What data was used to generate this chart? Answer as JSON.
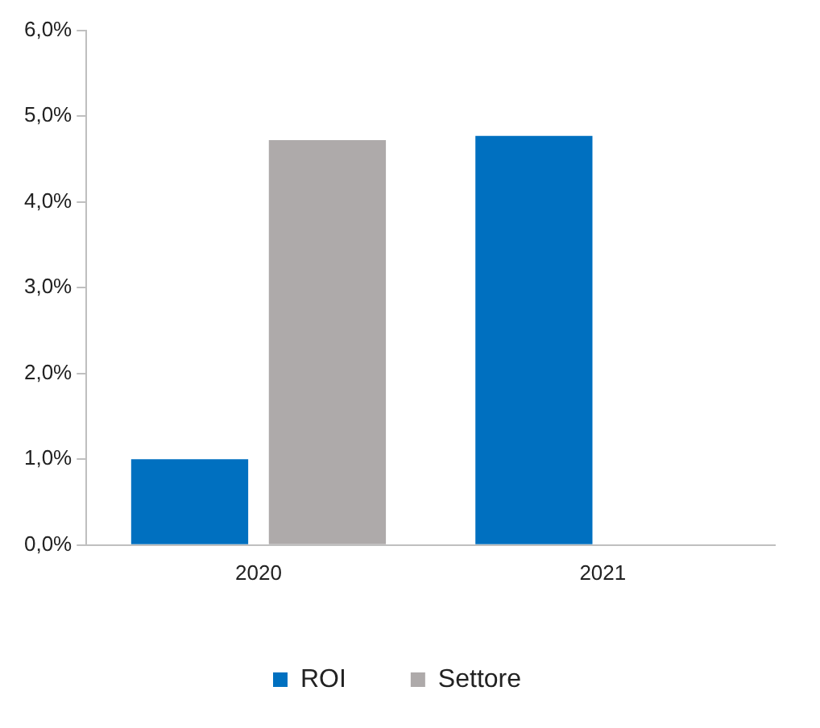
{
  "chart_data": {
    "type": "bar",
    "categories": [
      "2020",
      "2021"
    ],
    "series": [
      {
        "name": "ROI",
        "color": "#0070c0",
        "values": [
          1.0,
          4.77
        ]
      },
      {
        "name": "Settore",
        "color": "#aeaaaa",
        "values": [
          4.72,
          null
        ]
      }
    ],
    "ylim": [
      0,
      6
    ],
    "yticks": [
      {
        "value": 0,
        "label": "0,0%"
      },
      {
        "value": 1,
        "label": "1,0%"
      },
      {
        "value": 2,
        "label": "2,0%"
      },
      {
        "value": 3,
        "label": "3,0%"
      },
      {
        "value": 4,
        "label": "4,0%"
      },
      {
        "value": 5,
        "label": "5,0%"
      },
      {
        "value": 6,
        "label": "6,0%"
      }
    ],
    "grid": false,
    "legend": "bottom"
  }
}
